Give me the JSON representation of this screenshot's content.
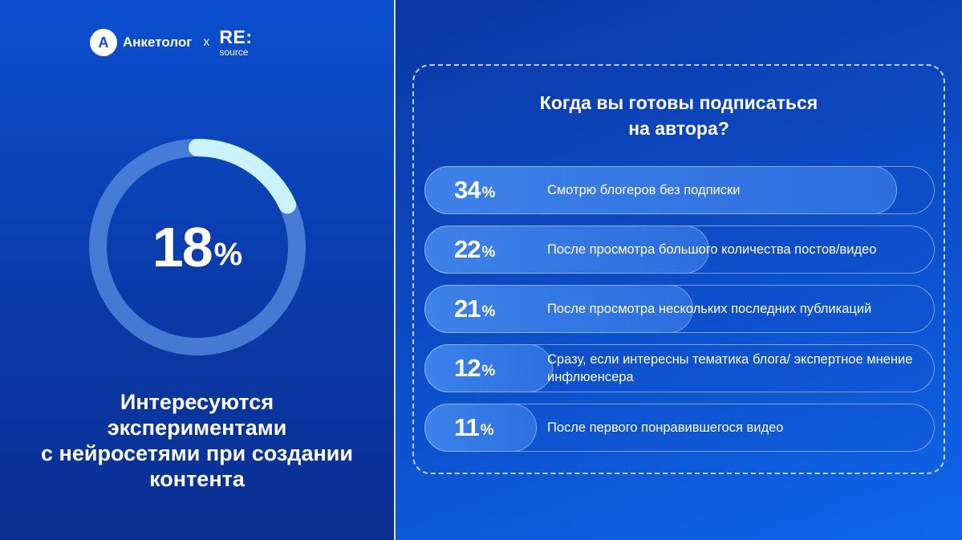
{
  "header": {
    "brand_letter": "A",
    "brand_name": "Анкетолог",
    "separator": "x",
    "partner_main": "RE:",
    "partner_sub": "source"
  },
  "highlight": {
    "value": "18",
    "unit": "%",
    "fraction": 0.18,
    "caption": "Интересуются\nэкспериментами\nс нейросетями при создании\nконтента"
  },
  "chart_data": {
    "type": "bar",
    "title": "Когда вы готовы подписаться\nна автора?",
    "unit": "%",
    "categories": [
      "Смотрю блогеров без подписки",
      "После просмотра большого количества постов/видео",
      "После просмотра нескольких последних публикаций",
      "Сразу, если интересны тематика блога/ экспертное мнение инфлюенсера",
      "После первого понравившегося видео"
    ],
    "values": [
      34,
      22,
      21,
      12,
      11
    ]
  },
  "colors": {
    "accent": "#c9f4ff",
    "ring_track": "#5b8fe0"
  }
}
